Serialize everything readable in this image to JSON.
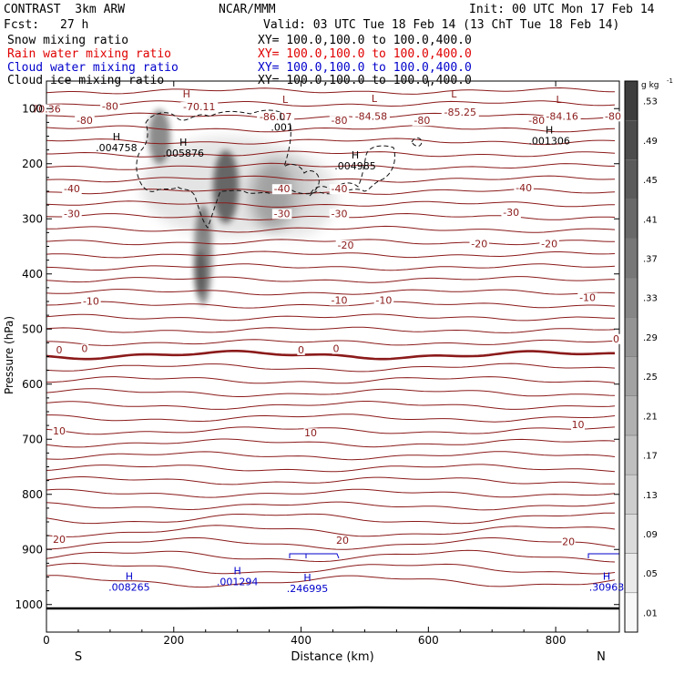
{
  "header": {
    "title": "CONTRAST  3km ARW",
    "forecast_label": "Fcst:",
    "forecast_value": "27 h",
    "center": "NCAR/MMM",
    "init": "Init: 00 UTC Mon 17 Feb 14",
    "valid": "Valid: 03 UTC Tue 18 Feb 14 (13 ChT Tue 18 Feb 14)"
  },
  "fields": [
    {
      "name": "Snow mixing ratio",
      "xy": "XY= 100.0,100.0 to 100.0,400.0",
      "color": "#000000"
    },
    {
      "name": "Rain water mixing ratio",
      "xy": "XY= 100.0,100.0 to 100.0,400.0",
      "color": "#e00000"
    },
    {
      "name": "Cloud water mixing ratio",
      "xy": "XY= 100.0,100.0 to 100.0,400.0",
      "color": "#0000cc"
    },
    {
      "name": "Cloud ice mixing ratio",
      "xy": "XY= 100.0,100.0 to 100.0,400.0",
      "color": "#000000"
    }
  ],
  "chart_data": {
    "type": "contour",
    "xlabel": "Distance (km)",
    "ylabel": "Pressure (hPa)",
    "xlim": [
      0,
      900
    ],
    "ylim": [
      1050,
      50
    ],
    "xticks": [
      0,
      200,
      400,
      600,
      800
    ],
    "yticks": [
      100,
      200,
      300,
      400,
      500,
      600,
      700,
      800,
      900,
      1000
    ],
    "x_end_labels": {
      "left": "S",
      "right": "N"
    },
    "colorbar": {
      "unit": "g kg",
      "unit_exp": "-1",
      "ticks": [
        ".01",
        ".05",
        ".09",
        ".13",
        ".17",
        ".21",
        ".25",
        ".29",
        ".33",
        ".37",
        ".41",
        ".45",
        ".49",
        ".53"
      ]
    },
    "temperature_labels": [
      {
        "text": "70.36",
        "x": 0,
        "p": 107
      },
      {
        "text": "-80",
        "x": 100,
        "p": 102
      },
      {
        "text": "-70.11",
        "x": 240,
        "p": 103
      },
      {
        "text": "-86.07",
        "x": 360,
        "p": 121
      },
      {
        "text": "-84.58",
        "x": 510,
        "p": 120
      },
      {
        "text": "-85.25",
        "x": 650,
        "p": 113
      },
      {
        "text": "-84.16",
        "x": 810,
        "p": 120
      },
      {
        "text": "-80",
        "x": 60,
        "p": 128
      },
      {
        "text": "-80",
        "x": 460,
        "p": 128
      },
      {
        "text": "-80",
        "x": 590,
        "p": 128
      },
      {
        "text": "-80",
        "x": 890,
        "p": 120
      },
      {
        "text": "-80",
        "x": 770,
        "p": 128
      },
      {
        "text": "-40",
        "x": 40,
        "p": 252
      },
      {
        "text": "-40",
        "x": 370,
        "p": 252
      },
      {
        "text": "-40",
        "x": 460,
        "p": 252
      },
      {
        "text": "-40",
        "x": 750,
        "p": 250
      },
      {
        "text": "-30",
        "x": 40,
        "p": 297
      },
      {
        "text": "-30",
        "x": 370,
        "p": 297
      },
      {
        "text": "-30",
        "x": 460,
        "p": 297
      },
      {
        "text": "-30",
        "x": 730,
        "p": 295
      },
      {
        "text": "-20",
        "x": 470,
        "p": 354
      },
      {
        "text": "-20",
        "x": 680,
        "p": 352
      },
      {
        "text": "-20",
        "x": 790,
        "p": 352
      },
      {
        "text": "-10",
        "x": 70,
        "p": 456
      },
      {
        "text": "-10",
        "x": 460,
        "p": 454
      },
      {
        "text": "-10",
        "x": 530,
        "p": 454
      },
      {
        "text": "-10",
        "x": 850,
        "p": 449
      },
      {
        "text": "0",
        "x": 20,
        "p": 544
      },
      {
        "text": "0",
        "x": 60,
        "p": 542
      },
      {
        "text": "0",
        "x": 400,
        "p": 544
      },
      {
        "text": "0",
        "x": 455,
        "p": 542
      },
      {
        "text": "0",
        "x": 895,
        "p": 524
      },
      {
        "text": "10",
        "x": 20,
        "p": 691
      },
      {
        "text": "10",
        "x": 415,
        "p": 695
      },
      {
        "text": "10",
        "x": 835,
        "p": 680
      },
      {
        "text": "20",
        "x": 20,
        "p": 888
      },
      {
        "text": "20",
        "x": 465,
        "p": 890
      },
      {
        "text": "20",
        "x": 820,
        "p": 892
      }
    ],
    "extrema_labels": [
      {
        "marker": "H",
        "value": ".005876",
        "x": 215,
        "p": 187,
        "color": "#000000"
      },
      {
        "marker": "H",
        "value": ".004758",
        "x": 110,
        "p": 177,
        "color": "#000000"
      },
      {
        "marker": "H",
        "value": ".004985",
        "x": 485,
        "p": 210,
        "color": "#000000"
      },
      {
        "marker": "H",
        "value": ".001306",
        "x": 790,
        "p": 165,
        "color": "#000000"
      },
      {
        "marker": "L",
        "value": ".001",
        "x": 370,
        "p": 140,
        "color": "#000000"
      },
      {
        "marker": "H",
        "value": ".008265",
        "x": 130,
        "p": 975,
        "color": "#0000cc"
      },
      {
        "marker": "H",
        "value": ".001294",
        "x": 300,
        "p": 965,
        "color": "#0000cc"
      },
      {
        "marker": "H",
        "value": ".246995",
        "x": 410,
        "p": 977,
        "color": "#0000cc"
      },
      {
        "marker": "H",
        "value": ".30963",
        "x": 880,
        "p": 975,
        "color": "#0000cc"
      }
    ],
    "low_markers": [
      {
        "text": "L",
        "x": 375,
        "p": 90
      },
      {
        "text": "L",
        "x": 515,
        "p": 88
      },
      {
        "text": "L",
        "x": 640,
        "p": 80
      },
      {
        "text": "L",
        "x": 805,
        "p": 90
      },
      {
        "text": "H",
        "x": 220,
        "p": 80
      }
    ]
  }
}
